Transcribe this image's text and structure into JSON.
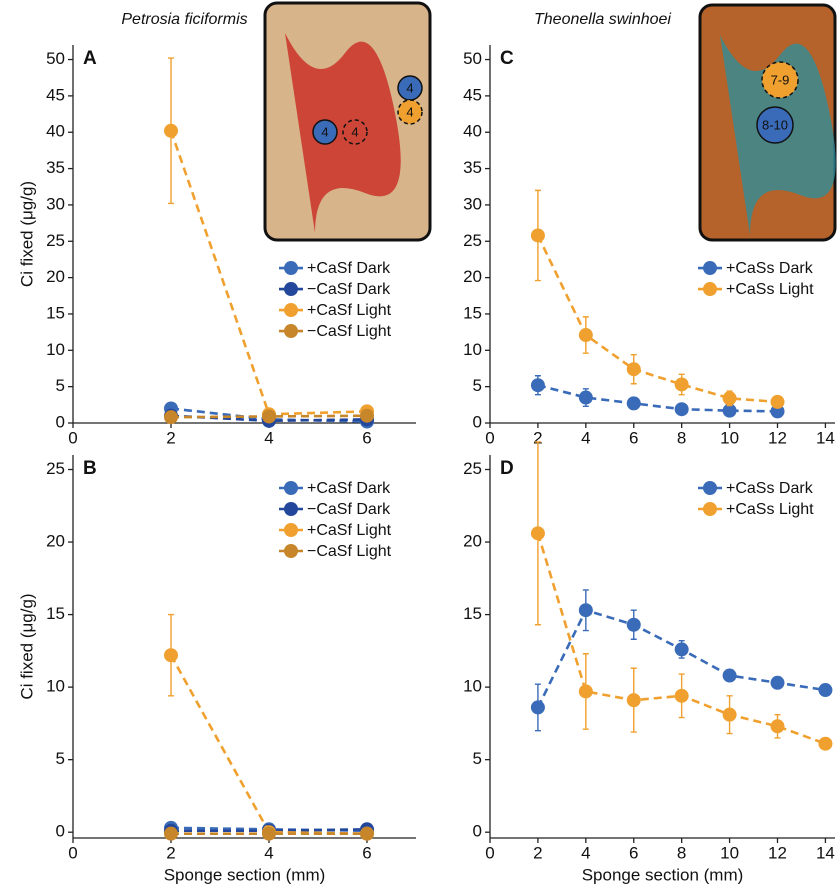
{
  "chart_data": [
    {
      "type": "line",
      "subtitle": "Petrosia ficiformis",
      "panel_label": "A",
      "ylabel": "Ci fixed (μg/g)",
      "photo_labels": [
        "4",
        "4",
        "4",
        "4"
      ],
      "x": [
        2,
        4,
        6
      ],
      "xlim": [
        0,
        7
      ],
      "xticks": [
        0,
        2,
        4,
        6
      ],
      "ylim": [
        0,
        52
      ],
      "yticks": [
        0,
        5,
        10,
        15,
        20,
        25,
        30,
        35,
        40,
        45,
        50
      ],
      "legend": "center right",
      "series": [
        {
          "name": "+CaSf Dark",
          "color": "#3a6bb8",
          "values": [
            2.0,
            0.5,
            0.2
          ]
        },
        {
          "name": "−CaSf Dark",
          "color": "#23479a",
          "values": [
            1.0,
            0.3,
            0.5
          ]
        },
        {
          "name": "+CaSf Light",
          "color": "#f0a02e",
          "values": [
            40.2,
            1.2,
            1.6
          ],
          "errors": [
            10,
            0.3,
            0.3
          ]
        },
        {
          "name": "−CaSf Light",
          "color": "#c7862a",
          "values": [
            0.8,
            0.9,
            1.0
          ]
        }
      ]
    },
    {
      "type": "line",
      "panel_label": "B",
      "ylabel": "Ci fixed (μg/g)",
      "xlabel": "Sponge section (mm)",
      "x": [
        2,
        4,
        6
      ],
      "xlim": [
        0,
        7
      ],
      "xticks": [
        0,
        2,
        4,
        6
      ],
      "ylim": [
        -0.4,
        26
      ],
      "yticks": [
        0,
        5,
        10,
        15,
        20,
        25
      ],
      "legend": "upper right",
      "series": [
        {
          "name": "+CaSf Dark",
          "color": "#3a6bb8",
          "values": [
            0.3,
            0.2,
            0.1
          ]
        },
        {
          "name": "−CaSf Dark",
          "color": "#23479a",
          "values": [
            0.1,
            0.1,
            0.2
          ]
        },
        {
          "name": "+CaSf Light",
          "color": "#f0a02e",
          "values": [
            12.2,
            0.0,
            -0.1
          ],
          "errors": [
            2.8,
            0.1,
            0.1
          ]
        },
        {
          "name": "−CaSf Light",
          "color": "#c7862a",
          "values": [
            -0.1,
            -0.1,
            -0.1
          ]
        }
      ]
    },
    {
      "type": "line",
      "subtitle": "Theonella swinhoei",
      "panel_label": "C",
      "photo_labels": [
        "7-9",
        "8-10"
      ],
      "x": [
        2,
        4,
        6,
        8,
        10,
        12
      ],
      "xlim": [
        0,
        14.4
      ],
      "xticks": [
        0,
        2,
        4,
        6,
        8,
        10,
        12,
        14
      ],
      "ylim": [
        0,
        52
      ],
      "yticks": [
        0,
        5,
        10,
        15,
        20,
        25,
        30,
        35,
        40,
        45,
        50
      ],
      "legend": "center right",
      "series": [
        {
          "name": "+CaSs Dark",
          "color": "#3a6bb8",
          "values": [
            5.2,
            3.5,
            2.7,
            1.9,
            1.7,
            1.6
          ],
          "errors": [
            1.3,
            1.2,
            0.8,
            0.4,
            0.3,
            0.3
          ]
        },
        {
          "name": "+CaSs Light",
          "color": "#f0a02e",
          "values": [
            25.8,
            12.1,
            7.4,
            5.3,
            3.4,
            2.9
          ],
          "errors": [
            6.2,
            2.5,
            2.0,
            1.4,
            1.0,
            0.5
          ]
        }
      ]
    },
    {
      "type": "line",
      "panel_label": "D",
      "xlabel": "Sponge section (mm)",
      "x": [
        2,
        4,
        6,
        8,
        10,
        12,
        14
      ],
      "xlim": [
        0,
        14.4
      ],
      "xticks": [
        0,
        2,
        4,
        6,
        8,
        10,
        12,
        14
      ],
      "ylim": [
        -0.4,
        26
      ],
      "yticks": [
        0,
        5,
        10,
        15,
        20,
        25
      ],
      "legend": "upper right",
      "series": [
        {
          "name": "+CaSs Dark",
          "color": "#3a6bb8",
          "values": [
            8.6,
            15.3,
            14.3,
            12.6,
            10.8,
            10.3,
            9.8
          ],
          "errors": [
            1.6,
            1.4,
            1.0,
            0.6,
            0.3,
            0.4,
            0.2
          ]
        },
        {
          "name": "+CaSs Light",
          "color": "#f0a02e",
          "values": [
            20.6,
            9.7,
            9.1,
            9.4,
            8.1,
            7.3,
            6.1
          ],
          "errors": [
            6.3,
            2.6,
            2.2,
            1.5,
            1.3,
            0.8,
            0.2
          ]
        }
      ]
    }
  ]
}
